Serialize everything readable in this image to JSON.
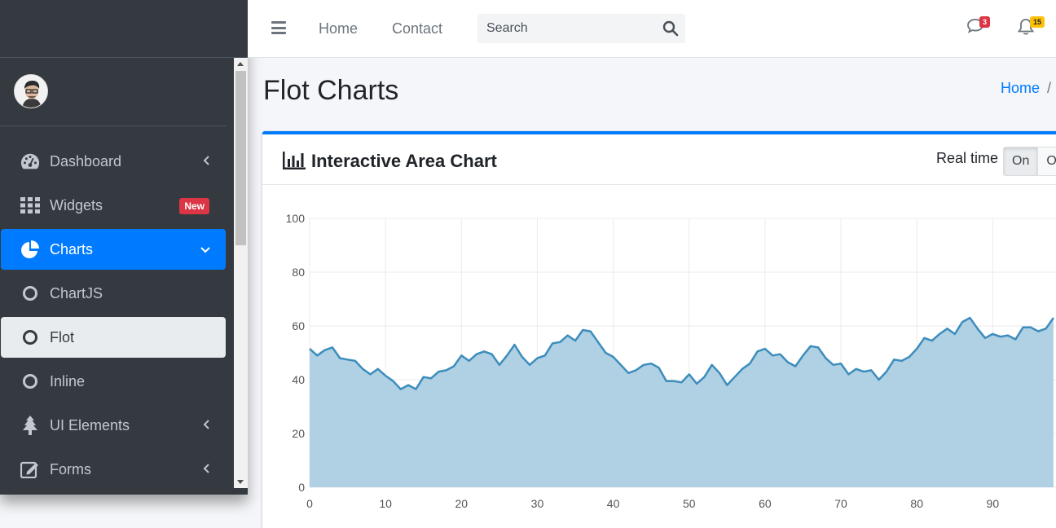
{
  "navbar": {
    "links": [
      "Home",
      "Contact"
    ],
    "search_placeholder": "Search",
    "messages_count": "3",
    "notifications_count": "15",
    "messages_badge_color": "#dc3545",
    "notifications_badge_color": "#ffc107"
  },
  "sidebar": {
    "items": [
      {
        "label": "Dashboard",
        "icon": "tachometer-icon",
        "has_arrow": true
      },
      {
        "label": "Widgets",
        "icon": "grid-icon",
        "badge": "New"
      },
      {
        "label": "Charts",
        "icon": "pie-chart-icon",
        "has_arrow": true,
        "state": "active"
      },
      {
        "label": "ChartJS",
        "icon": "circle-outline-icon"
      },
      {
        "label": "Flot",
        "icon": "circle-outline-icon",
        "state": "selected"
      },
      {
        "label": "Inline",
        "icon": "circle-outline-icon"
      },
      {
        "label": "UI Elements",
        "icon": "tree-icon",
        "has_arrow": true
      },
      {
        "label": "Forms",
        "icon": "edit-icon",
        "has_arrow": true
      }
    ],
    "active_color": "#007bff"
  },
  "page": {
    "title": "Flot Charts",
    "breadcrumb": [
      "Home",
      "/"
    ]
  },
  "card": {
    "title": "Interactive Area Chart",
    "realtime_label": "Real time",
    "toggle": [
      "On",
      "Off"
    ],
    "accent_color": "#007bff"
  },
  "chart_data": {
    "type": "area",
    "title": "",
    "xlabel": "",
    "ylabel": "",
    "xlim": [
      0,
      98
    ],
    "ylim": [
      0,
      100
    ],
    "x_ticks": [
      0,
      10,
      20,
      30,
      40,
      50,
      60,
      70,
      80,
      90
    ],
    "y_ticks": [
      0,
      20,
      40,
      60,
      80,
      100
    ],
    "grid": true,
    "line_color": "#3c8dbc",
    "fill_color": "#b0d0e4",
    "series": [
      {
        "values": [
          51.5,
          49,
          51,
          52,
          48,
          47.5,
          47,
          44,
          42,
          44,
          41.5,
          39.5,
          36.5,
          38,
          36.5,
          41,
          40.5,
          43,
          43.5,
          45,
          49,
          47,
          49.5,
          50.5,
          49.5,
          45.5,
          49,
          53,
          48.5,
          45.5,
          48,
          49,
          53.5,
          54,
          56.5,
          54.5,
          58.5,
          58,
          54,
          50,
          48.5,
          45.5,
          42.5,
          43.5,
          45.5,
          46,
          44.5,
          39.5,
          39.5,
          39,
          42,
          38.5,
          41,
          45.5,
          42.5,
          38,
          41,
          44,
          46,
          50.5,
          51.5,
          49,
          49.5,
          46.5,
          45,
          49,
          52.5,
          52,
          48,
          45.5,
          46,
          42,
          44,
          43,
          43.5,
          40,
          43,
          47.5,
          47,
          48.5,
          51.5,
          55.5,
          54.5,
          57,
          59,
          57,
          61.5,
          63,
          59,
          55.5,
          57,
          56,
          56.5,
          55,
          59.5,
          59.5,
          58,
          59,
          63
        ]
      }
    ]
  }
}
